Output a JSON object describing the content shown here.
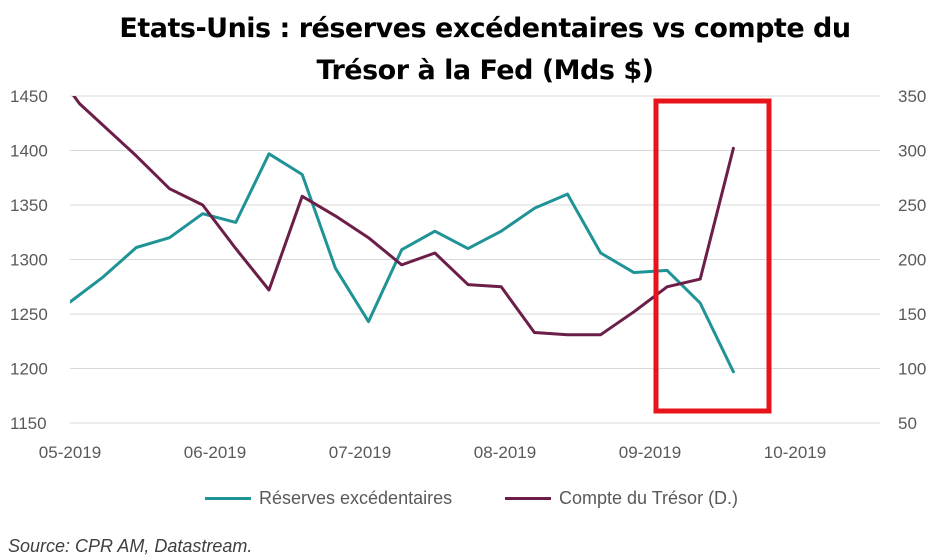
{
  "title_line1": "Etats-Unis : réserves excédentaires vs compte du",
  "title_line2": "Trésor à la Fed (Mds $)",
  "source": "Source: CPR AM, Datastream.",
  "colors": {
    "reserves": "#1f9396",
    "tresor": "#6b1e48",
    "highlight": "#e8131b",
    "grid": "#d9d9d9"
  },
  "chart_data": {
    "type": "line",
    "title": "Etats-Unis : réserves excédentaires vs compte du Trésor à la Fed (Mds $)",
    "x_ticks": [
      "05-2019",
      "06-2019",
      "07-2019",
      "08-2019",
      "09-2019",
      "10-2019"
    ],
    "y_left": {
      "ticks": [
        "1450",
        "1400",
        "1350",
        "1300",
        "1250",
        "1200",
        "1150"
      ],
      "range": [
        1150,
        1450
      ]
    },
    "y_right": {
      "ticks": [
        "350",
        "300",
        "250",
        "200",
        "150",
        "100",
        "50"
      ],
      "range": [
        50,
        350
      ]
    },
    "grid": "horizontal",
    "legend_position": "bottom",
    "highlight_box": {
      "label": "",
      "x_range": [
        "09-2019",
        "10-2019"
      ]
    },
    "series": [
      {
        "name": "Réserves excédentaires",
        "axis": "left",
        "x": [
          "2019-05-01",
          "2019-05-08",
          "2019-05-15",
          "2019-05-22",
          "2019-05-29",
          "2019-06-05",
          "2019-06-12",
          "2019-06-19",
          "2019-06-26",
          "2019-07-03",
          "2019-07-10",
          "2019-07-17",
          "2019-07-24",
          "2019-07-31",
          "2019-08-07",
          "2019-08-14",
          "2019-08-21",
          "2019-08-28",
          "2019-09-04",
          "2019-09-11",
          "2019-09-18"
        ],
        "values": [
          1261,
          1284,
          1311,
          1320,
          1342,
          1334,
          1397,
          1378,
          1292,
          1243,
          1309,
          1326,
          1310,
          1326,
          1347,
          1360,
          1306,
          1288,
          1290,
          1260,
          1197
        ]
      },
      {
        "name": "Compte du Trésor (D.)",
        "axis": "right",
        "x": [
          "2019-05-01",
          "2019-05-03",
          "2019-05-15",
          "2019-05-22",
          "2019-05-29",
          "2019-06-05",
          "2019-06-12",
          "2019-06-19",
          "2019-06-26",
          "2019-07-03",
          "2019-07-10",
          "2019-07-17",
          "2019-07-24",
          "2019-07-31",
          "2019-08-07",
          "2019-08-14",
          "2019-08-21",
          "2019-08-28",
          "2019-09-04",
          "2019-09-11",
          "2019-09-18"
        ],
        "values": [
          355,
          343,
          295,
          265,
          250,
          210,
          172,
          258,
          240,
          220,
          195,
          206,
          177,
          175,
          133,
          131,
          131,
          152,
          175,
          182,
          302
        ]
      }
    ]
  }
}
